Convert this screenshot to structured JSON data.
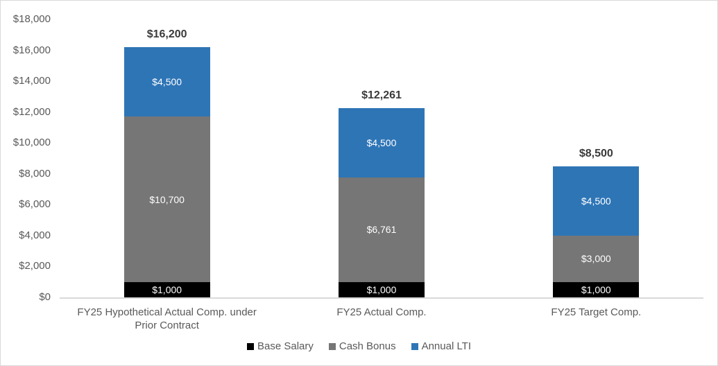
{
  "chart_data": {
    "type": "bar",
    "subtype": "stacked",
    "title": "",
    "xlabel": "",
    "ylabel": "",
    "grid": false,
    "categories": [
      "FY25 Hypothetical Actual Comp. under Prior Contract",
      "FY25 Actual Comp.",
      "FY25 Target Comp."
    ],
    "series": [
      {
        "name": "Base Salary",
        "color": "#000000",
        "label_color": "#FFFFFF",
        "values": [
          1000,
          1000,
          1000
        ],
        "labels": [
          "$1,000",
          "$1,000",
          "$1,000"
        ]
      },
      {
        "name": "Cash Bonus",
        "color": "#767676",
        "label_color": "#FFFFFF",
        "values": [
          10700,
          6761,
          3000
        ],
        "labels": [
          "$10,700",
          "$6,761",
          "$3,000"
        ]
      },
      {
        "name": "Annual LTI",
        "color": "#2E75B6",
        "label_color": "#FFFFFF",
        "values": [
          4500,
          4500,
          4500
        ],
        "labels": [
          "$4,500",
          "$4,500",
          "$4,500"
        ]
      }
    ],
    "totals": {
      "values": [
        16200,
        12261,
        8500
      ],
      "labels": [
        "$16,200",
        "$12,261",
        "$8,500"
      ]
    },
    "y_axis": {
      "min": 0,
      "max": 18000,
      "ticks": [
        {
          "value": 0,
          "label": "$0"
        },
        {
          "value": 2000,
          "label": "$2,000"
        },
        {
          "value": 4000,
          "label": "$4,000"
        },
        {
          "value": 6000,
          "label": "$6,000"
        },
        {
          "value": 8000,
          "label": "$8,000"
        },
        {
          "value": 10000,
          "label": "$10,000"
        },
        {
          "value": 12000,
          "label": "$12,000"
        },
        {
          "value": 14000,
          "label": "$14,000"
        },
        {
          "value": 16000,
          "label": "$16,000"
        },
        {
          "value": 18000,
          "label": "$18,000"
        }
      ]
    },
    "legend": {
      "position": "bottom",
      "items": [
        "Base Salary",
        "Cash Bonus",
        "Annual LTI"
      ]
    },
    "colors": {
      "background": "#FFFFFF",
      "border": "#D9D9D9",
      "axis_line": "#D9D9D9",
      "tick_label": "#595959",
      "category_label": "#595959",
      "total_label": "#3A3A3A",
      "legend_label": "#595959"
    }
  }
}
